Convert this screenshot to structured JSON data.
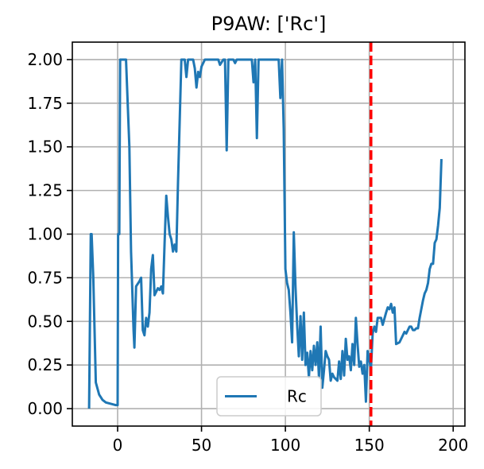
{
  "chart_data": {
    "type": "line",
    "title": "P9AW: ['Rc']",
    "xlabel": "",
    "ylabel": "",
    "xlim": [
      -27,
      207
    ],
    "ylim": [
      -0.1,
      2.1
    ],
    "x_ticks": [
      0,
      50,
      100,
      150,
      200
    ],
    "y_ticks": [
      0.0,
      0.25,
      0.5,
      0.75,
      1.0,
      1.25,
      1.5,
      1.75,
      2.0
    ],
    "x_tick_labels": [
      "0",
      "50",
      "100",
      "150",
      "200"
    ],
    "y_tick_labels": [
      "0.00",
      "0.25",
      "0.50",
      "0.75",
      "1.00",
      "1.25",
      "1.50",
      "1.75",
      "2.00"
    ],
    "grid": true,
    "legend_position": "lower center",
    "vline": {
      "x": 151,
      "color": "#ff0000",
      "style": "dashed"
    },
    "series": [
      {
        "name": "Rc",
        "color": "#1f77b4",
        "points": [
          [
            -17,
            0.0
          ],
          [
            -16,
            1.0
          ],
          [
            -15.5,
            1.0
          ],
          [
            -14.5,
            0.75
          ],
          [
            -13,
            0.15
          ],
          [
            -11,
            0.08
          ],
          [
            -9,
            0.05
          ],
          [
            -7,
            0.035
          ],
          [
            -5,
            0.03
          ],
          [
            -3,
            0.025
          ],
          [
            -1,
            0.02
          ],
          [
            0,
            0.02
          ],
          [
            0.3,
            1.0
          ],
          [
            1,
            1.0
          ],
          [
            1.5,
            2.0
          ],
          [
            5,
            2.0
          ],
          [
            7,
            1.5
          ],
          [
            8,
            0.9
          ],
          [
            9.5,
            0.45
          ],
          [
            10,
            0.35
          ],
          [
            11,
            0.7
          ],
          [
            13,
            0.73
          ],
          [
            14,
            0.75
          ],
          [
            15,
            0.45
          ],
          [
            16,
            0.42
          ],
          [
            17,
            0.52
          ],
          [
            18,
            0.47
          ],
          [
            19,
            0.55
          ],
          [
            20,
            0.8
          ],
          [
            21,
            0.88
          ],
          [
            22,
            0.65
          ],
          [
            24,
            0.69
          ],
          [
            25,
            0.68
          ],
          [
            26,
            0.7
          ],
          [
            27,
            0.66
          ],
          [
            28,
            0.95
          ],
          [
            29,
            1.22
          ],
          [
            30,
            1.1
          ],
          [
            31,
            1.0
          ],
          [
            32,
            0.97
          ],
          [
            33,
            0.9
          ],
          [
            34,
            0.94
          ],
          [
            35,
            0.9
          ],
          [
            36,
            1.3
          ],
          [
            38,
            2.0
          ],
          [
            40,
            2.0
          ],
          [
            41,
            1.9
          ],
          [
            42,
            2.0
          ],
          [
            45,
            2.0
          ],
          [
            46,
            1.95
          ],
          [
            47,
            1.84
          ],
          [
            48,
            1.93
          ],
          [
            49,
            1.9
          ],
          [
            50,
            1.96
          ],
          [
            52,
            2.0
          ],
          [
            60,
            2.0
          ],
          [
            61,
            1.97
          ],
          [
            63,
            2.0
          ],
          [
            64,
            2.0
          ],
          [
            65,
            1.48
          ],
          [
            66,
            2.0
          ],
          [
            69,
            2.0
          ],
          [
            70,
            1.98
          ],
          [
            71,
            2.0
          ],
          [
            80,
            2.0
          ],
          [
            81,
            1.87
          ],
          [
            82,
            2.0
          ],
          [
            83,
            1.55
          ],
          [
            84,
            2.0
          ],
          [
            96,
            2.0
          ],
          [
            97,
            1.78
          ],
          [
            98,
            2.0
          ],
          [
            99,
            1.6
          ],
          [
            100,
            0.8
          ],
          [
            101,
            0.72
          ],
          [
            102,
            0.68
          ],
          [
            103,
            0.55
          ],
          [
            104,
            0.38
          ],
          [
            105,
            1.01
          ],
          [
            106,
            0.7
          ],
          [
            107,
            0.48
          ],
          [
            108,
            0.3
          ],
          [
            109,
            0.53
          ],
          [
            110,
            0.28
          ],
          [
            111,
            0.55
          ],
          [
            112,
            0.25
          ],
          [
            113,
            0.32
          ],
          [
            114,
            0.18
          ],
          [
            115,
            0.33
          ],
          [
            116,
            0.22
          ],
          [
            117,
            0.36
          ],
          [
            118,
            0.25
          ],
          [
            119,
            0.38
          ],
          [
            120,
            0.18
          ],
          [
            121,
            0.47
          ],
          [
            122,
            0.12
          ],
          [
            123,
            0.22
          ],
          [
            124,
            0.33
          ],
          [
            125,
            0.3
          ],
          [
            126,
            0.28
          ],
          [
            127,
            0.16
          ],
          [
            128,
            0.2
          ],
          [
            129,
            0.18
          ],
          [
            131,
            0.16
          ],
          [
            132,
            0.27
          ],
          [
            133,
            0.17
          ],
          [
            134,
            0.33
          ],
          [
            135,
            0.19
          ],
          [
            136,
            0.4
          ],
          [
            137,
            0.28
          ],
          [
            138,
            0.3
          ],
          [
            139,
            0.22
          ],
          [
            140,
            0.37
          ],
          [
            141,
            0.25
          ],
          [
            142,
            0.52
          ],
          [
            143,
            0.37
          ],
          [
            144,
            0.24
          ],
          [
            145,
            0.27
          ],
          [
            146,
            0.2
          ],
          [
            147,
            0.25
          ],
          [
            148,
            0.04
          ],
          [
            149,
            0.33
          ],
          [
            150,
            0.28
          ],
          [
            151,
            0.23
          ],
          [
            152,
            0.43
          ],
          [
            153,
            0.47
          ],
          [
            154,
            0.44
          ],
          [
            155,
            0.52
          ],
          [
            157,
            0.52
          ],
          [
            158,
            0.48
          ],
          [
            160,
            0.55
          ],
          [
            161,
            0.58
          ],
          [
            162,
            0.57
          ],
          [
            163,
            0.6
          ],
          [
            164,
            0.55
          ],
          [
            165,
            0.58
          ],
          [
            166,
            0.37
          ],
          [
            168,
            0.38
          ],
          [
            170,
            0.42
          ],
          [
            171,
            0.44
          ],
          [
            172,
            0.43
          ],
          [
            173,
            0.45
          ],
          [
            174,
            0.47
          ],
          [
            175,
            0.47
          ],
          [
            176,
            0.45
          ],
          [
            177,
            0.45
          ],
          [
            178,
            0.46
          ],
          [
            179,
            0.46
          ],
          [
            180,
            0.52
          ],
          [
            181,
            0.57
          ],
          [
            182,
            0.62
          ],
          [
            183,
            0.66
          ],
          [
            184,
            0.68
          ],
          [
            185,
            0.72
          ],
          [
            186,
            0.8
          ],
          [
            187,
            0.83
          ],
          [
            188,
            0.83
          ],
          [
            189,
            0.95
          ],
          [
            190,
            0.97
          ],
          [
            191,
            1.05
          ],
          [
            192,
            1.15
          ],
          [
            193,
            1.43
          ]
        ]
      }
    ]
  }
}
